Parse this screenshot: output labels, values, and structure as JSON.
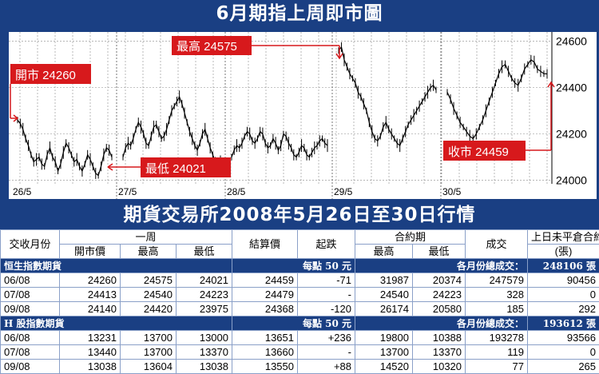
{
  "banner_top": "6月期指上周即市圖",
  "banner_mid": "期貨交易所2008年5月26日至30日行情",
  "colors": {
    "navy": "#1a3f83",
    "red": "#d7191c",
    "line": "#000000"
  },
  "chart_data": {
    "type": "line",
    "title": "6月期指上周即市圖",
    "x_ticks": [
      "26/5",
      "27/5",
      "28/5",
      "29/5",
      "30/5"
    ],
    "y_ticks": [
      24000,
      24200,
      24400,
      24600
    ],
    "ylim": [
      23985,
      24640
    ],
    "grid": true,
    "days": [
      {
        "label": "26/5",
        "values": [
          24260,
          24245,
          24220,
          24180,
          24150,
          24110,
          24080,
          24090,
          24100,
          24070,
          24060,
          24110,
          24140,
          24100,
          24080,
          24040,
          24070,
          24120,
          24160,
          24140,
          24110,
          24080,
          24090,
          24060,
          24040,
          24070,
          24110,
          24090,
          24060,
          24030,
          24021,
          24060,
          24110,
          24140,
          24130,
          24100
        ]
      },
      {
        "label": "27/5",
        "values": [
          24100,
          24140,
          24160,
          24150,
          24180,
          24220,
          24250,
          24230,
          24200,
          24160,
          24150,
          24190,
          24230,
          24240,
          24210,
          24180,
          24190,
          24220,
          24260,
          24300,
          24320,
          24340,
          24360,
          24330,
          24290,
          24250,
          24210,
          24180,
          24150,
          24130,
          24160,
          24200,
          24220,
          24180,
          24140,
          24110,
          24080,
          24050,
          24090
        ]
      },
      {
        "label": "28/5",
        "values": [
          24100,
          24130,
          24150,
          24140,
          24160,
          24190,
          24210,
          24200,
          24170,
          24160,
          24180,
          24210,
          24200,
          24160,
          24140,
          24150,
          24180,
          24160,
          24130,
          24150,
          24200,
          24190,
          24160,
          24140,
          24110,
          24100,
          24120,
          24150,
          24140,
          24110,
          24100,
          24120,
          24140,
          24150,
          24170,
          24180,
          24160,
          24150
        ]
      },
      {
        "label": "29/5",
        "values": [
          24560,
          24575,
          24520,
          24490,
          24460,
          24440,
          24420,
          24380,
          24360,
          24330,
          24300,
          24250,
          24210,
          24180,
          24170,
          24190,
          24230,
          24250,
          24220,
          24200,
          24180,
          24160,
          24150,
          24180,
          24210,
          24240,
          24260,
          24280,
          24300,
          24320,
          24340,
          24360,
          24380,
          24400,
          24410,
          24390
        ]
      },
      {
        "label": "30/5",
        "values": [
          24380,
          24350,
          24310,
          24280,
          24250,
          24230,
          24210,
          24190,
          24180,
          24200,
          24230,
          24260,
          24300,
          24340,
          24380,
          24420,
          24460,
          24490,
          24500,
          24470,
          24440,
          24420,
          24410,
          24440,
          24480,
          24500,
          24520,
          24510,
          24480,
          24470,
          24460,
          24459
        ]
      }
    ],
    "annotations": {
      "open": "開市 24260",
      "high": "最高 24575",
      "low": "最低 24021",
      "close": "收市 24459"
    }
  },
  "table": {
    "header1": {
      "c0": "交收月份",
      "week": "一周",
      "settle": "結算價",
      "change": "起跌",
      "contract": "合約期",
      "volume": "成交",
      "oi": "上日未平倉合約"
    },
    "header2": {
      "open": "開市價",
      "high": "最高",
      "low": "最低",
      "chigh": "最高",
      "clow": "最低",
      "oi_unit": "(張)"
    },
    "sections": [
      {
        "name": "恒生指數期貨",
        "point": "每點 50 元",
        "total_label": "各月份總成交：",
        "total": "248106 張",
        "rows": [
          [
            "06/08",
            "24260",
            "24575",
            "24021",
            "24459",
            "-71",
            "31987",
            "20374",
            "247579",
            "90456"
          ],
          [
            "07/08",
            "24413",
            "24540",
            "24223",
            "24479",
            "-",
            "24540",
            "24223",
            "328",
            "0"
          ],
          [
            "09/08",
            "24140",
            "24420",
            "23975",
            "24368",
            "-120",
            "26174",
            "20580",
            "185",
            "292"
          ]
        ]
      },
      {
        "name": "H 股指數期貨",
        "point": "每點 50 元",
        "total_label": "各月份總成交：",
        "total": "193612 張",
        "rows": [
          [
            "06/08",
            "13231",
            "13700",
            "13000",
            "13651",
            "+236",
            "19800",
            "10388",
            "193278",
            "93566"
          ],
          [
            "07/08",
            "13440",
            "13700",
            "13370",
            "13660",
            "-",
            "13700",
            "13370",
            "119",
            "0"
          ],
          [
            "09/08",
            "13038",
            "13604",
            "13038",
            "13550",
            "+88",
            "14520",
            "10320",
            "77",
            "265"
          ]
        ]
      }
    ]
  }
}
